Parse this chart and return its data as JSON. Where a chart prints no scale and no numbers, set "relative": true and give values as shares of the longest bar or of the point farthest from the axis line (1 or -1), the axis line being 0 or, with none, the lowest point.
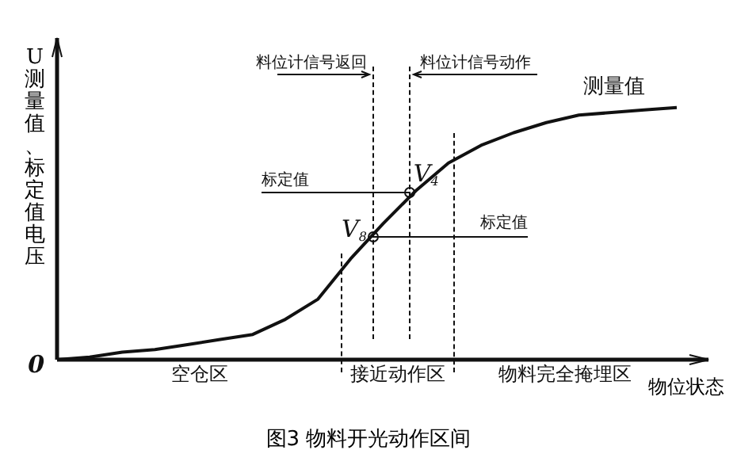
{
  "chart_data": {
    "type": "line",
    "title": "图3  物料开光动作区间",
    "xlabel": "物位状态",
    "ylabel": "U测量值、标定值电压",
    "relative": true,
    "marker": "none",
    "line_style": "solid",
    "categories": [
      null,
      null,
      null,
      null,
      null,
      null,
      null,
      null,
      null,
      null,
      null,
      null,
      null,
      null,
      null,
      null,
      null,
      null,
      null,
      null
    ],
    "series": [
      {
        "name": "测量值",
        "color": "#111111",
        "values": [
          0,
          0.01,
          0.03,
          0.04,
          0.06,
          0.08,
          0.1,
          0.16,
          0.24,
          0.4,
          0.54,
          0.67,
          0.78,
          0.85,
          0.9,
          0.94,
          0.97,
          0.98,
          0.99,
          1
        ]
      }
    ],
    "annotations": [
      "0",
      "料位计信号返回",
      "料位计信号动作",
      "标定值",
      "标定值",
      "V$_{4}$",
      "V$_{8}$",
      "空仓区",
      "接近动作区",
      "物料完全掩埋区"
    ]
  }
}
